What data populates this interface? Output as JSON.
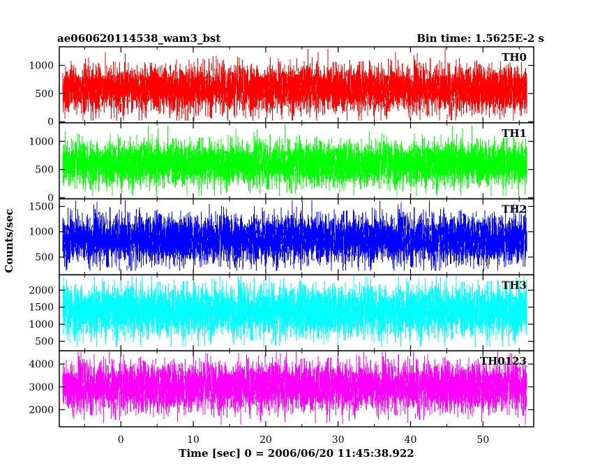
{
  "chart_data": {
    "type": "line",
    "title": "ae060620114538_wam3_bst",
    "subtitle": "Bin time: 1.5625E-2 s",
    "xlabel": "Time [sec] 0 = 2006/06/20 11:45:38.922",
    "ylabel": "Counts/sec",
    "xlim": [
      -8.5,
      57
    ],
    "data_x_range": [
      -8,
      56
    ],
    "x_ticks": [
      0,
      10,
      20,
      30,
      40,
      50
    ],
    "x_tick_labels": [
      "0",
      "10",
      "20",
      "30",
      "40",
      "50"
    ],
    "grid": false,
    "panels": [
      {
        "name": "TH0",
        "color": "#ff0000",
        "ylim": [
          -20,
          1330
        ],
        "y_ticks": [
          0,
          500,
          1000
        ],
        "y_tick_labels": [
          "0",
          "500",
          "1000"
        ],
        "y_range": [
          20,
          1320
        ],
        "y_mean": 580,
        "y_sd": 200
      },
      {
        "name": "TH1",
        "color": "#00ff00",
        "ylim": [
          -20,
          1330
        ],
        "y_ticks": [
          0,
          500,
          1000
        ],
        "y_tick_labels": [
          "0",
          "500",
          "1000"
        ],
        "y_range": [
          30,
          1300
        ],
        "y_mean": 600,
        "y_sd": 190
      },
      {
        "name": "TH2",
        "color": "#0000ff",
        "ylim": [
          150,
          1650
        ],
        "y_ticks": [
          500,
          1000,
          1500
        ],
        "y_tick_labels": [
          "500",
          "1000",
          "1500"
        ],
        "y_range": [
          230,
          1620
        ],
        "y_mean": 850,
        "y_sd": 230
      },
      {
        "name": "TH3",
        "color": "#00ffff",
        "ylim": [
          220,
          2450
        ],
        "y_ticks": [
          500,
          1000,
          1500,
          2000
        ],
        "y_tick_labels": [
          "500",
          "1000",
          "1500",
          "2000"
        ],
        "y_range": [
          330,
          2420
        ],
        "y_mean": 1380,
        "y_sd": 360
      },
      {
        "name": "TH0123",
        "color": "#ff00ff",
        "ylim": [
          1250,
          4580
        ],
        "y_ticks": [
          2000,
          3000,
          4000
        ],
        "y_tick_labels": [
          "2000",
          "3000",
          "4000"
        ],
        "y_range": [
          1350,
          4550
        ],
        "y_mean": 3000,
        "y_sd": 520
      }
    ]
  }
}
